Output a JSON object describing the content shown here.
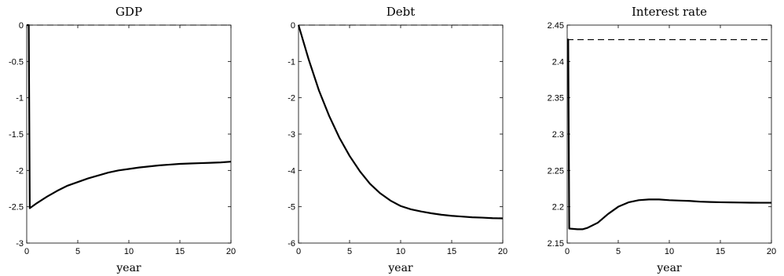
{
  "chart_data": [
    {
      "type": "line",
      "title": "GDP",
      "xlabel": "year",
      "ylabel": "",
      "xlim": [
        0,
        20
      ],
      "ylim": [
        -3,
        0
      ],
      "xticks": [
        0,
        5,
        10,
        15,
        20
      ],
      "yticks": [
        -3,
        -2.5,
        -2,
        -1.5,
        -1,
        -0.5,
        0
      ],
      "x": [
        0,
        0.2,
        0.3,
        1,
        2,
        3,
        4,
        5,
        6,
        7,
        8,
        9,
        10,
        11,
        12,
        13,
        14,
        15,
        16,
        17,
        18,
        19,
        20
      ],
      "series": [
        {
          "values": [
            0,
            0,
            -2.52,
            -2.45,
            -2.36,
            -2.28,
            -2.21,
            -2.16,
            -2.11,
            -2.07,
            -2.03,
            -2.0,
            -1.98,
            -1.96,
            -1.945,
            -1.93,
            -1.92,
            -1.91,
            -1.905,
            -1.9,
            -1.895,
            -1.89,
            -1.88
          ]
        }
      ],
      "reference_lines": [
        {
          "y": 0,
          "style": "dashed"
        }
      ]
    },
    {
      "type": "line",
      "title": "Debt",
      "xlabel": "year",
      "ylabel": "",
      "xlim": [
        0,
        20
      ],
      "ylim": [
        -6,
        0
      ],
      "xticks": [
        0,
        5,
        10,
        15,
        20
      ],
      "yticks": [
        -6,
        -5,
        -4,
        -3,
        -2,
        -1,
        0
      ],
      "x": [
        0,
        1,
        2,
        3,
        4,
        5,
        6,
        7,
        8,
        9,
        10,
        11,
        12,
        13,
        14,
        15,
        16,
        17,
        18,
        19,
        20
      ],
      "series": [
        {
          "values": [
            0,
            -0.95,
            -1.8,
            -2.5,
            -3.1,
            -3.6,
            -4.02,
            -4.37,
            -4.63,
            -4.83,
            -4.98,
            -5.07,
            -5.13,
            -5.18,
            -5.22,
            -5.25,
            -5.27,
            -5.29,
            -5.3,
            -5.315,
            -5.32
          ]
        }
      ],
      "reference_lines": [
        {
          "y": 0,
          "style": "dashed"
        }
      ]
    },
    {
      "type": "line",
      "title": "Interest rate",
      "xlabel": "year",
      "ylabel": "",
      "xlim": [
        0,
        20
      ],
      "ylim": [
        2.15,
        2.45
      ],
      "xticks": [
        0,
        5,
        10,
        15,
        20
      ],
      "yticks": [
        2.15,
        2.2,
        2.25,
        2.3,
        2.35,
        2.4,
        2.45
      ],
      "x": [
        0,
        0.1,
        0.2,
        1,
        1.5,
        2,
        3,
        4,
        5,
        6,
        7,
        8,
        9,
        10,
        11,
        12,
        13,
        14,
        15,
        16,
        17,
        18,
        19,
        20
      ],
      "series": [
        {
          "values": [
            2.43,
            2.43,
            2.17,
            2.169,
            2.169,
            2.171,
            2.178,
            2.19,
            2.2,
            2.206,
            2.209,
            2.21,
            2.21,
            2.209,
            2.2085,
            2.208,
            2.207,
            2.2065,
            2.2062,
            2.206,
            2.2058,
            2.2056,
            2.2055,
            2.2055
          ]
        }
      ],
      "reference_lines": [
        {
          "y": 2.43,
          "style": "dashed"
        }
      ]
    }
  ]
}
